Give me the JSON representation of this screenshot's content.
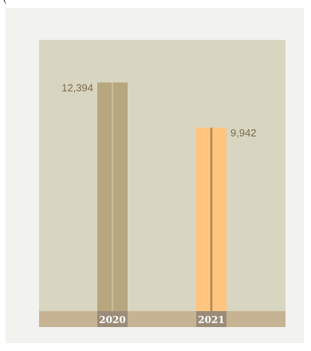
{
  "cut_text": "(",
  "chart_data": {
    "type": "bar",
    "categories": [
      "2020",
      "2021"
    ],
    "values": [
      12394,
      9942
    ],
    "value_labels": [
      "12,394",
      "9,942"
    ],
    "ylim": [
      0,
      14700
    ],
    "title": "",
    "xlabel": "",
    "ylabel": "",
    "grid": false,
    "colors": {
      "plot_bg": "#d8d6c0",
      "baseline_band": "#c6b394",
      "bars": [
        "#b7a77e",
        "#ffc57f"
      ],
      "bar_center_lines": [
        "#cbbd96",
        "#a88a5c"
      ],
      "year_bg": "#9a8c78"
    }
  }
}
